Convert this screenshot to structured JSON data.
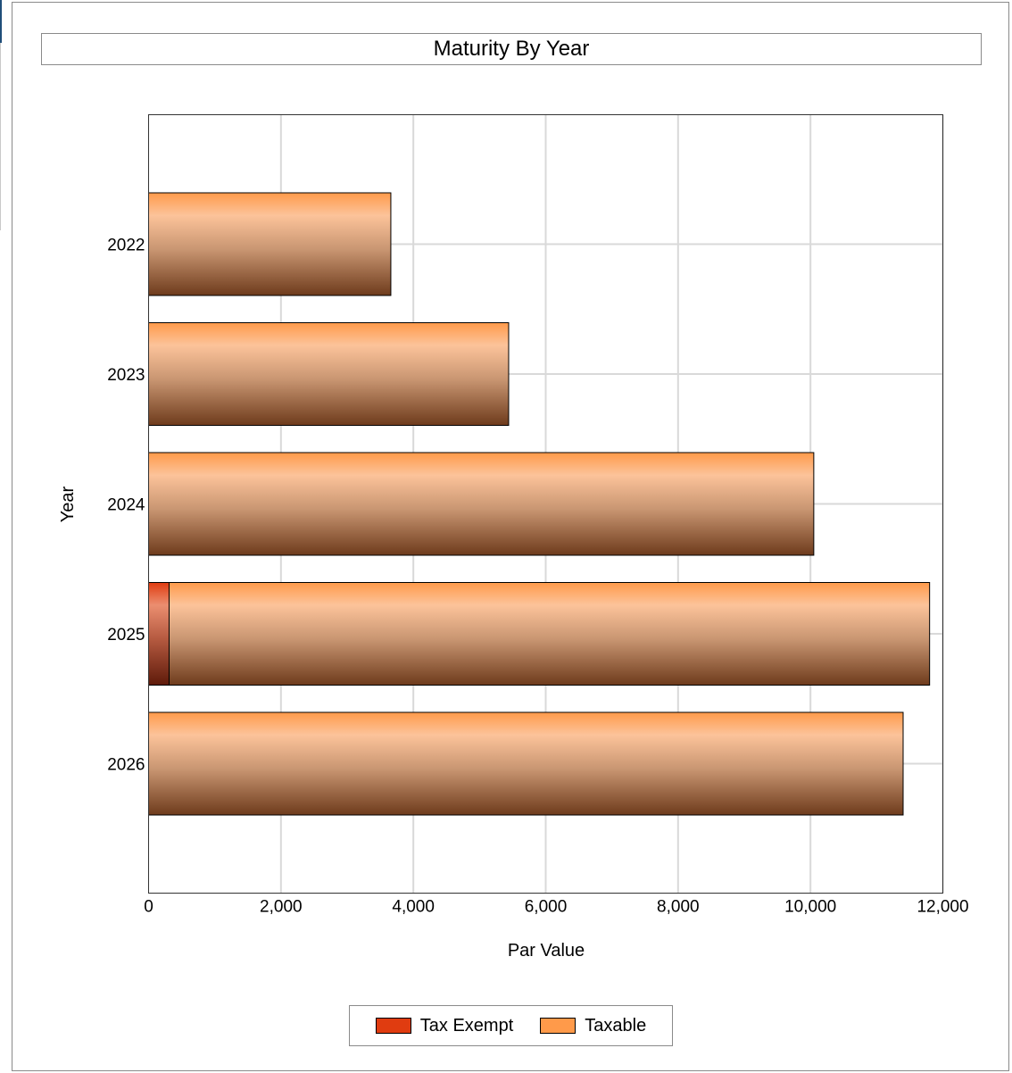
{
  "chart_data": {
    "type": "bar",
    "orientation": "horizontal",
    "stacked": true,
    "title": "Maturity By Year",
    "xlabel": "Par Value",
    "ylabel": "Year",
    "categories": [
      "2022",
      "2023",
      "2024",
      "2025",
      "2026"
    ],
    "xlim": [
      0,
      12000
    ],
    "x_ticks": [
      "0",
      "2,000",
      "4,000",
      "6,000",
      "8,000",
      "10,000",
      "12,000"
    ],
    "grid": true,
    "legend_position": "bottom",
    "series": [
      {
        "name": "Tax Exempt",
        "color": "#e03c10",
        "values": [
          0,
          0,
          0,
          310,
          0
        ]
      },
      {
        "name": "Taxable",
        "color": "#ff9a4a",
        "values": [
          3660,
          5440,
          10050,
          11490,
          11400
        ]
      }
    ]
  }
}
